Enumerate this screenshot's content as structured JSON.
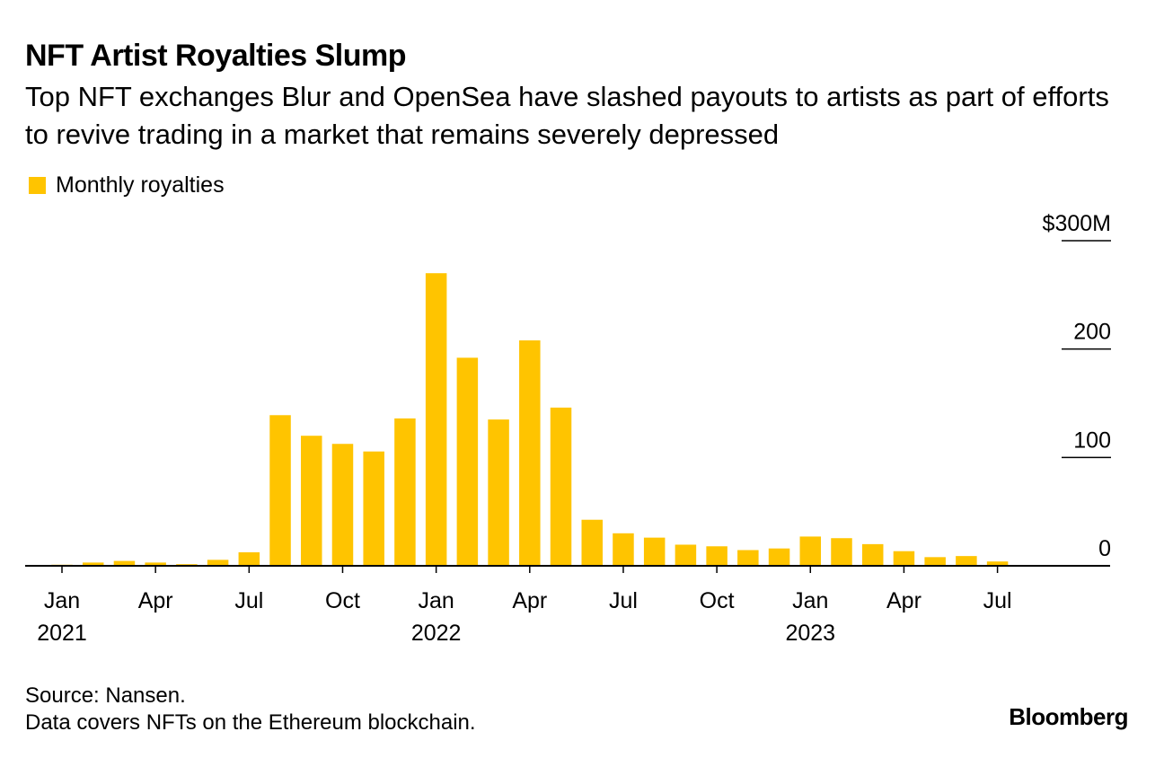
{
  "title": "NFT Artist Royalties Slump",
  "subtitle": "Top NFT exchanges Blur and OpenSea have slashed payouts to artists as part of efforts to revive trading in a market that remains severely depressed",
  "legend": {
    "label": "Monthly royalties",
    "color": "#ffc400"
  },
  "footer": {
    "source": "Source: Nansen.",
    "note": "Data covers NFTs on the Ethereum blockchain."
  },
  "brand": "Bloomberg",
  "chart_data": {
    "type": "bar",
    "bar_color": "#ffc400",
    "axis_color": "#000000",
    "categories": [
      "2021-01",
      "2021-02",
      "2021-03",
      "2021-04",
      "2021-05",
      "2021-06",
      "2021-07",
      "2021-08",
      "2021-09",
      "2021-10",
      "2021-11",
      "2021-12",
      "2022-01",
      "2022-02",
      "2022-03",
      "2022-04",
      "2022-05",
      "2022-06",
      "2022-07",
      "2022-08",
      "2022-09",
      "2022-10",
      "2022-11",
      "2022-12",
      "2023-01",
      "2023-02",
      "2023-03",
      "2023-04",
      "2023-05",
      "2023-06",
      "2023-07",
      "2023-08",
      "2023-09"
    ],
    "values": [
      1,
      3,
      4.5,
      3,
      1.5,
      5.5,
      12.5,
      139,
      120,
      112.5,
      105.5,
      136,
      270,
      192,
      135,
      208,
      146,
      42.5,
      30,
      26,
      19.5,
      18,
      14.5,
      16,
      27,
      25.5,
      20,
      13.5,
      8,
      9,
      4,
      0,
      0
    ],
    "ylim": [
      0,
      300
    ],
    "y_ticks": [
      {
        "value": 300,
        "label": "$300M"
      },
      {
        "value": 200,
        "label": "200"
      },
      {
        "value": 100,
        "label": "100"
      },
      {
        "value": 0,
        "label": "0"
      }
    ],
    "x_ticks": [
      {
        "index": 0,
        "label": "Jan",
        "sublabel": "2021"
      },
      {
        "index": 3,
        "label": "Apr",
        "sublabel": ""
      },
      {
        "index": 6,
        "label": "Jul",
        "sublabel": ""
      },
      {
        "index": 9,
        "label": "Oct",
        "sublabel": ""
      },
      {
        "index": 12,
        "label": "Jan",
        "sublabel": "2022"
      },
      {
        "index": 15,
        "label": "Apr",
        "sublabel": ""
      },
      {
        "index": 18,
        "label": "Jul",
        "sublabel": ""
      },
      {
        "index": 21,
        "label": "Oct",
        "sublabel": ""
      },
      {
        "index": 24,
        "label": "Jan",
        "sublabel": "2023"
      },
      {
        "index": 27,
        "label": "Apr",
        "sublabel": ""
      },
      {
        "index": 30,
        "label": "Jul",
        "sublabel": ""
      }
    ],
    "y_axis_position": "right",
    "grid": false,
    "legend_position": "top-left"
  }
}
